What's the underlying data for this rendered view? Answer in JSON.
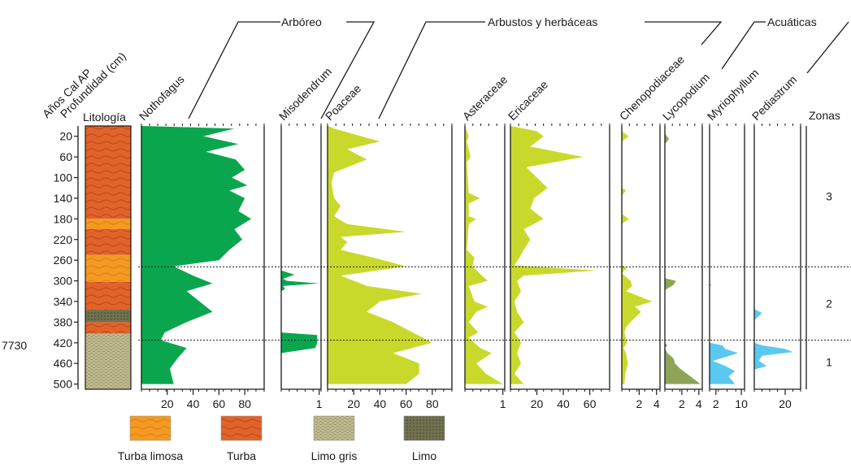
{
  "header": {
    "age_label": "Años Cal AP",
    "depth_label": "Profundidad (cm)",
    "lithology_label": "Litología",
    "zones_label": "Zonas",
    "age_marker": "7730"
  },
  "groups": [
    {
      "name": "Arbóreo"
    },
    {
      "name": "Arbustos y herbáceas"
    },
    {
      "name": "Acuáticas"
    }
  ],
  "depth_axis": {
    "ticks": [
      "20",
      "60",
      "100",
      "140",
      "180",
      "220",
      "260",
      "300",
      "340",
      "380",
      "420",
      "460",
      "500"
    ],
    "min": 0,
    "max": 510
  },
  "lithology": {
    "layers": [
      {
        "from": 0,
        "to": 180,
        "type": "Turba"
      },
      {
        "from": 180,
        "to": 200,
        "type": "Turba limosa"
      },
      {
        "from": 200,
        "to": 250,
        "type": "Turba"
      },
      {
        "from": 250,
        "to": 302,
        "type": "Turba limosa"
      },
      {
        "from": 302,
        "to": 356,
        "type": "Turba"
      },
      {
        "from": 356,
        "to": 380,
        "type": "Limo"
      },
      {
        "from": 380,
        "to": 402,
        "type": "Turba"
      },
      {
        "from": 402,
        "to": 510,
        "type": "Limo gris"
      }
    ]
  },
  "legend": [
    {
      "label": "Turba limosa",
      "color": "#f39a22"
    },
    {
      "label": "Turba",
      "color": "#e0632a"
    },
    {
      "label": "Limo gris",
      "color": "#bdb88e"
    },
    {
      "label": "Limo",
      "color": "#71714f"
    }
  ],
  "zones": [
    {
      "label": "3",
      "top": 0,
      "bottom": 273
    },
    {
      "label": "2",
      "top": 273,
      "bottom": 415
    },
    {
      "label": "1",
      "top": 415,
      "bottom": 500
    }
  ],
  "chart_data": {
    "type": "area",
    "y_axis": "Profundidad (cm)",
    "ylim": [
      0,
      510
    ],
    "zone_boundaries": [
      273,
      415
    ],
    "series": [
      {
        "name": "Nothofagus",
        "group": "Arbóreo",
        "color": "#0aa64e",
        "xlim": [
          0,
          95
        ],
        "ticks": [
          "20",
          "40",
          "60",
          "80"
        ],
        "tick_values": [
          20,
          40,
          60,
          80
        ],
        "depth": [
          0,
          5,
          20,
          35,
          50,
          65,
          85,
          100,
          115,
          125,
          140,
          150,
          165,
          180,
          200,
          220,
          240,
          260,
          272,
          290,
          305,
          320,
          340,
          360,
          380,
          400,
          415,
          430,
          450,
          470,
          500
        ],
        "values": [
          0,
          72,
          48,
          75,
          50,
          73,
          80,
          70,
          82,
          68,
          80,
          78,
          75,
          85,
          72,
          78,
          68,
          60,
          25,
          40,
          55,
          35,
          45,
          55,
          35,
          18,
          15,
          35,
          28,
          22,
          25
        ]
      },
      {
        "name": "Misodendrum",
        "group": "Arbóreo",
        "color": "#0aa64e",
        "xlim": [
          0,
          1.05
        ],
        "ticks": [
          "1"
        ],
        "tick_values": [
          1
        ],
        "depth": [
          0,
          280,
          288,
          296,
          300,
          305,
          310,
          316,
          320,
          400,
          405,
          420,
          430,
          440,
          500
        ],
        "values": [
          0,
          0,
          0.35,
          0.05,
          0.15,
          1,
          0.05,
          0.1,
          0,
          0,
          0.95,
          0.95,
          0.9,
          0,
          0
        ]
      },
      {
        "name": "Poaceae",
        "group": "Arbustos y herbáceas",
        "color": "#c8d92c",
        "xlim": [
          0,
          95
        ],
        "ticks": [
          "20",
          "40",
          "60",
          "80"
        ],
        "tick_values": [
          20,
          40,
          60,
          80
        ],
        "depth": [
          0,
          5,
          30,
          45,
          65,
          90,
          110,
          140,
          155,
          175,
          190,
          205,
          215,
          225,
          240,
          255,
          272,
          290,
          310,
          325,
          340,
          360,
          380,
          400,
          420,
          440,
          460,
          480,
          500
        ],
        "values": [
          0,
          5,
          40,
          15,
          30,
          5,
          3,
          5,
          10,
          5,
          15,
          60,
          10,
          15,
          10,
          35,
          60,
          10,
          30,
          72,
          40,
          30,
          50,
          65,
          80,
          50,
          70,
          70,
          60
        ]
      },
      {
        "name": "Asteraceae",
        "group": "Arbustos y herbáceas",
        "color": "#c8d92c",
        "xlim": [
          0,
          1.05
        ],
        "ticks": [
          "1"
        ],
        "tick_values": [
          1
        ],
        "depth": [
          0,
          20,
          30,
          60,
          70,
          130,
          140,
          150,
          175,
          180,
          190,
          240,
          255,
          272,
          290,
          300,
          310,
          340,
          350,
          360,
          380,
          400,
          410,
          430,
          440,
          460,
          480,
          500
        ],
        "values": [
          0,
          0.1,
          0.05,
          0.15,
          0.05,
          0.1,
          0.4,
          0.1,
          0.1,
          0.3,
          0.1,
          0.05,
          0.25,
          0.2,
          0.45,
          0.6,
          0.1,
          0.25,
          0.6,
          0.3,
          0.1,
          0.35,
          0.1,
          0.4,
          0.7,
          0.3,
          0.55,
          1
        ]
      },
      {
        "name": "Ericaceae",
        "group": "Arbustos y herbáceas",
        "color": "#c8d92c",
        "xlim": [
          0,
          75
        ],
        "ticks": [
          "20",
          "40",
          "60"
        ],
        "tick_values": [
          20,
          40,
          60
        ],
        "depth": [
          0,
          10,
          20,
          40,
          60,
          80,
          100,
          120,
          140,
          160,
          180,
          200,
          220,
          240,
          250,
          270,
          280,
          290,
          300,
          320,
          340,
          360,
          380,
          400,
          420,
          440,
          460,
          480,
          500
        ],
        "values": [
          0,
          20,
          25,
          15,
          55,
          12,
          20,
          28,
          18,
          15,
          25,
          10,
          15,
          10,
          8,
          3,
          65,
          10,
          5,
          8,
          3,
          5,
          10,
          3,
          8,
          5,
          8,
          3,
          10
        ]
      },
      {
        "name": "Chenopodiaceae",
        "group": "Arbustos y herbáceas",
        "color": "#c8d92c",
        "xlim": [
          0,
          4.4
        ],
        "ticks": [
          "2",
          "4"
        ],
        "tick_values": [
          2,
          4
        ],
        "depth": [
          0,
          10,
          20,
          30,
          120,
          125,
          135,
          170,
          180,
          190,
          270,
          275,
          285,
          300,
          310,
          320,
          340,
          350,
          360,
          380,
          390,
          400,
          420,
          430,
          440,
          460,
          480,
          500
        ],
        "values": [
          0,
          0,
          0.8,
          0,
          0,
          0.5,
          0,
          0,
          0.8,
          0,
          0,
          0.6,
          0,
          1,
          1.2,
          0.5,
          3.5,
          1.5,
          2.2,
          1,
          0.5,
          0.3,
          0.6,
          0.2,
          0.5,
          0.7,
          0.4,
          0.3
        ]
      },
      {
        "name": "Lycopodium",
        "group": "Acuáticas",
        "color": "#8fa357",
        "xlim": [
          0,
          4.4
        ],
        "ticks": [
          "2",
          "4"
        ],
        "tick_values": [
          2,
          4
        ],
        "depth": [
          0,
          15,
          25,
          35,
          295,
          300,
          308,
          318,
          420,
          425,
          430,
          440,
          450,
          460,
          470,
          485,
          500
        ],
        "values": [
          0,
          0,
          0.5,
          0,
          0,
          1.3,
          1,
          0,
          0,
          0.3,
          0,
          0.3,
          1,
          1.2,
          1.8,
          3,
          4.2
        ]
      },
      {
        "name": "Myriophyllum",
        "group": "Acuáticas",
        "color": "#5bc8ef",
        "xlim": [
          0,
          11
        ],
        "ticks": [
          "2",
          "10"
        ],
        "tick_values": [
          2,
          10
        ],
        "depth": [
          0,
          305,
          308,
          312,
          420,
          425,
          432,
          440,
          455,
          465,
          475,
          485,
          500
        ],
        "values": [
          0,
          0,
          0.5,
          0,
          0,
          4,
          5,
          9,
          1,
          5,
          8,
          6,
          8
        ]
      },
      {
        "name": "Pediastrum",
        "group": "Acuáticas",
        "color": "#5bc8ef",
        "xlim": [
          0,
          30
        ],
        "ticks": [
          "20"
        ],
        "tick_values": [
          20
        ],
        "depth": [
          0,
          355,
          362,
          368,
          376,
          420,
          425,
          432,
          438,
          445,
          455,
          465,
          472,
          500
        ],
        "values": [
          0,
          0,
          5,
          3,
          0,
          0,
          5,
          20,
          25,
          5,
          3,
          8,
          0,
          0
        ]
      }
    ]
  }
}
